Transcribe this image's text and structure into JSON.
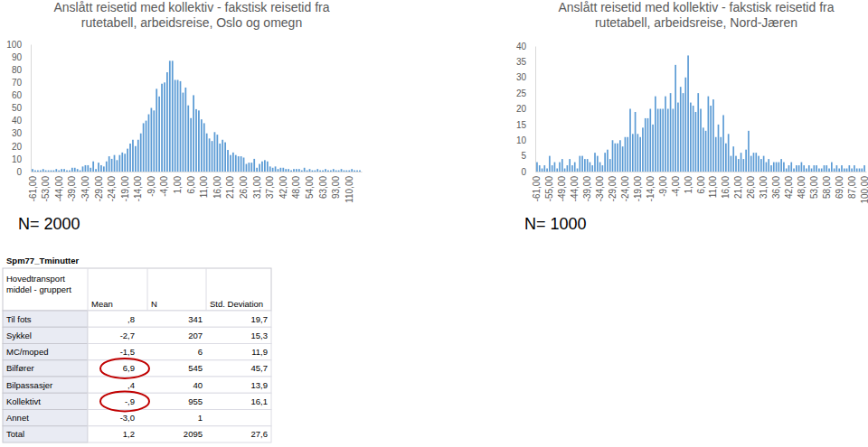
{
  "chart_data": [
    {
      "type": "bar",
      "title": "Anslått reisetid med kollektiv - fakstisk reisetid fra\nrutetabell, arbeidsreise, Oslo og omegn",
      "annotations": [
        "N= 2000"
      ],
      "categories": [
        "-61,00",
        null,
        null,
        null,
        null,
        "-53,00",
        null,
        null,
        null,
        null,
        "-44,00",
        null,
        null,
        null,
        null,
        "-39,00",
        null,
        null,
        null,
        null,
        "-34,00",
        null,
        null,
        null,
        null,
        "-29,00",
        null,
        null,
        null,
        null,
        "-24,00",
        null,
        null,
        null,
        null,
        "-19,00",
        null,
        null,
        null,
        null,
        "-14,00",
        null,
        null,
        null,
        null,
        "-9,00",
        null,
        null,
        null,
        null,
        "-4,00",
        null,
        null,
        null,
        null,
        "1,00",
        null,
        null,
        null,
        null,
        "6,00",
        null,
        null,
        null,
        null,
        "11,00",
        null,
        null,
        null,
        null,
        "16,00",
        null,
        null,
        null,
        null,
        "21,00",
        null,
        null,
        null,
        null,
        "26,00",
        null,
        null,
        null,
        null,
        "31,00",
        null,
        null,
        null,
        null,
        "37,00",
        null,
        null,
        null,
        null,
        "42,00",
        null,
        null,
        null,
        null,
        "48,00",
        null,
        null,
        null,
        null,
        "54,00",
        null,
        null,
        null,
        null,
        "63,00",
        null,
        null,
        null,
        null,
        "93,00",
        null,
        null,
        null,
        null,
        "110,00",
        null,
        null,
        null,
        null
      ],
      "values": [
        2,
        1,
        1,
        1,
        2,
        1,
        1,
        1,
        1,
        2,
        1,
        2,
        2,
        1,
        1,
        3,
        3,
        2,
        1,
        4,
        5,
        5,
        3,
        8,
        2,
        7,
        5,
        4,
        8,
        12,
        10,
        13,
        9,
        13,
        15,
        14,
        18,
        22,
        25,
        20,
        25,
        30,
        38,
        40,
        45,
        50,
        48,
        65,
        59,
        69,
        70,
        78,
        87,
        87,
        72,
        72,
        71,
        62,
        66,
        52,
        42,
        60,
        49,
        48,
        41,
        38,
        30,
        26,
        24,
        31,
        29,
        22,
        25,
        23,
        17,
        13,
        15,
        13,
        12,
        12,
        11,
        6,
        7,
        7,
        10,
        3,
        6,
        8,
        9,
        8,
        4,
        3,
        4,
        2,
        3,
        3,
        2,
        2,
        1,
        2,
        2,
        2,
        1,
        3,
        1,
        2,
        1,
        1,
        2,
        1,
        1,
        2,
        1,
        1,
        2,
        1,
        1,
        2,
        1,
        1,
        1,
        2,
        1,
        1,
        1
      ],
      "color": "#5b9bd5",
      "ylim": [
        0,
        100
      ],
      "yticks": [
        0,
        10,
        20,
        30,
        40,
        50,
        60,
        70,
        80,
        90,
        100
      ],
      "grid": false
    },
    {
      "type": "bar",
      "title": "Anslått reisetid med kollektiv - fakstisk reisetid fra\nrutetabell, arbeidsreise, Nord-Jæren",
      "annotations": [
        "N= 1000"
      ],
      "categories": [
        "-61,00",
        null,
        null,
        null,
        null,
        "-55,00",
        null,
        null,
        null,
        null,
        "-49,00",
        null,
        null,
        null,
        null,
        "-44,00",
        null,
        null,
        null,
        null,
        "-39,00",
        null,
        null,
        null,
        null,
        "-34,00",
        null,
        null,
        null,
        null,
        "-29,00",
        null,
        null,
        null,
        null,
        "-24,00",
        null,
        null,
        null,
        null,
        "-19,00",
        null,
        null,
        null,
        null,
        "-14,00",
        null,
        null,
        null,
        null,
        "-9,00",
        null,
        null,
        null,
        null,
        "-4,00",
        null,
        null,
        null,
        null,
        "1,00",
        null,
        null,
        null,
        null,
        "6,00",
        null,
        null,
        null,
        null,
        "11,00",
        null,
        null,
        null,
        null,
        "16,00",
        null,
        null,
        null,
        null,
        "21,00",
        null,
        null,
        null,
        null,
        "26,00",
        null,
        null,
        null,
        null,
        "31,00",
        null,
        null,
        null,
        null,
        "36,00",
        null,
        null,
        null,
        null,
        "42,00",
        null,
        null,
        null,
        null,
        "48,00",
        null,
        null,
        null,
        null,
        "53,00",
        null,
        null,
        null,
        null,
        "58,00",
        null,
        null,
        null,
        null,
        "69,00",
        null,
        null,
        null,
        null,
        "87,00",
        null,
        null,
        null,
        null,
        "100,00"
      ],
      "values": [
        3,
        2,
        1,
        2,
        1,
        5,
        2,
        3,
        1,
        3,
        4,
        1,
        2,
        4,
        2,
        3,
        1,
        5,
        5,
        4,
        4,
        3,
        2,
        6,
        5,
        3,
        2,
        6,
        7,
        4,
        10,
        9,
        9,
        10,
        8,
        11,
        11,
        20,
        12,
        19,
        12,
        11,
        14,
        17,
        17,
        20,
        15,
        24,
        20,
        20,
        20,
        24,
        20,
        25,
        20,
        34,
        22,
        27,
        25,
        30,
        37,
        22,
        21,
        19,
        25,
        20,
        14,
        13,
        24,
        21,
        23,
        11,
        15,
        11,
        18,
        9,
        12,
        5,
        8,
        5,
        4,
        6,
        4,
        7,
        13,
        5,
        6,
        6,
        5,
        4,
        5,
        3,
        4,
        2,
        3,
        3,
        3,
        4,
        3,
        1,
        2,
        3,
        1,
        2,
        2,
        3,
        2,
        1,
        2,
        1,
        2,
        2,
        1,
        1,
        2,
        2,
        1,
        3,
        1,
        2,
        1,
        2,
        1,
        1,
        2,
        1,
        2,
        1,
        1,
        1,
        2
      ],
      "color": "#5b9bd5",
      "ylim": [
        0,
        40
      ],
      "yticks": [
        0,
        5,
        10,
        15,
        20,
        25,
        30,
        35,
        40
      ],
      "grid": false
    }
  ],
  "table": {
    "caption": "Spm77_Tminutter",
    "header": [
      "Hovedtransport middel - gruppert",
      "Mean",
      "N",
      "Std. Deviation"
    ],
    "rows": [
      [
        "Til fots",
        ",8",
        341,
        "19,7"
      ],
      [
        "Sykkel",
        "-2,7",
        207,
        "15,3"
      ],
      [
        "MC/moped",
        "-1,5",
        6,
        "11,9"
      ],
      [
        "Bilfører",
        "6,9",
        545,
        "45,7"
      ],
      [
        "Bilpassasjer",
        ",4",
        40,
        "13,9"
      ],
      [
        "Kollektivt",
        "-,9",
        955,
        "16,1"
      ],
      [
        "Annet",
        "-3,0",
        1,
        ""
      ],
      [
        "Total",
        "1,2",
        2095,
        "27,6"
      ]
    ],
    "circled_rows": [
      3,
      5
    ]
  }
}
